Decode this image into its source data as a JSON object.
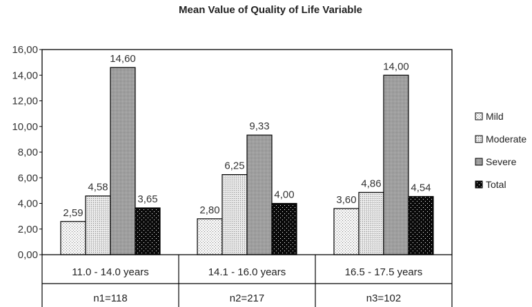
{
  "chart_data": {
    "type": "bar",
    "title": "Mean Value of Quality of Life Variable",
    "xlabel": "",
    "ylabel": "",
    "ylim": [
      0,
      16
    ],
    "yticks": [
      "0,00",
      "2,00",
      "4,00",
      "6,00",
      "8,00",
      "10,00",
      "12,00",
      "14,00",
      "16,00"
    ],
    "categories": [
      "11.0 - 14.0 years",
      "14.1 - 16.0 years",
      "16.5 - 17.5 years"
    ],
    "category_counts": [
      "n1=118",
      "n2=217",
      "n3=102"
    ],
    "series": [
      {
        "name": "Mild",
        "values": [
          2.59,
          2.8,
          3.6
        ],
        "labels": [
          "2,59",
          "2,80",
          "3,60"
        ],
        "pattern": "mild"
      },
      {
        "name": "Moderate",
        "values": [
          4.58,
          6.25,
          4.86
        ],
        "labels": [
          "4,58",
          "6,25",
          "4,86"
        ],
        "pattern": "moderate"
      },
      {
        "name": "Severe",
        "values": [
          14.6,
          9.33,
          14.0
        ],
        "labels": [
          "14,60",
          "9,33",
          "14,00"
        ],
        "pattern": "severe"
      },
      {
        "name": "Total",
        "values": [
          3.65,
          4.0,
          4.54
        ],
        "labels": [
          "3,65",
          "4,00",
          "4,54"
        ],
        "pattern": "total"
      }
    ],
    "legend_position": "right",
    "grid": false
  }
}
